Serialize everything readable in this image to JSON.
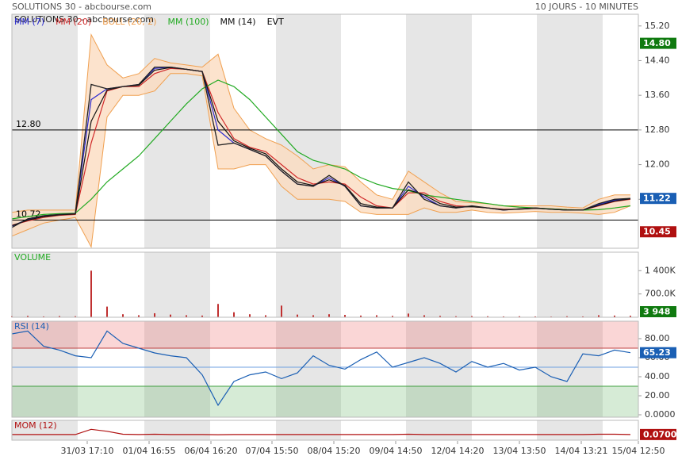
{
  "chart_data": [
    {
      "type": "line",
      "title": "SOLUTIONS 30 - abcbourse.com",
      "subtitle": "10 JOURS - 10 MINUTES",
      "color": "#222222",
      "values": [
        10.55,
        10.75,
        10.82,
        10.85,
        10.87,
        13.85,
        13.75,
        13.8,
        13.85,
        14.25,
        14.25,
        14.2,
        14.15,
        12.45,
        12.5,
        12.35,
        12.2,
        11.85,
        11.55,
        11.5,
        11.75,
        11.5,
        11.05,
        11.0,
        11.0,
        11.6,
        11.2,
        11.05,
        11.0,
        11.05,
        11.0,
        10.95,
        10.98,
        11.0,
        10.97,
        10.95,
        10.95,
        11.1,
        11.2,
        11.22
      ],
      "series": [
        {
          "name": "MM (7)",
          "color": "#2a2ad0",
          "values": [
            10.58,
            10.74,
            10.82,
            10.85,
            10.87,
            13.5,
            13.75,
            13.8,
            13.85,
            14.22,
            14.25,
            14.2,
            14.15,
            12.8,
            12.5,
            12.35,
            12.2,
            11.85,
            11.55,
            11.5,
            11.7,
            11.5,
            11.05,
            11.0,
            11.0,
            11.5,
            11.25,
            11.05,
            11.0,
            11.04,
            11.0,
            10.95,
            10.98,
            11.0,
            10.97,
            10.95,
            10.95,
            11.08,
            11.18,
            11.22
          ]
        },
        {
          "name": "MM (20)",
          "color": "#d02a2a",
          "values": [
            10.6,
            10.7,
            10.78,
            10.83,
            10.85,
            12.5,
            13.7,
            13.8,
            13.8,
            14.1,
            14.22,
            14.2,
            14.15,
            13.2,
            12.6,
            12.4,
            12.3,
            12.0,
            11.7,
            11.55,
            11.6,
            11.55,
            11.25,
            11.05,
            11.0,
            11.35,
            11.35,
            11.15,
            11.05,
            11.03,
            11.0,
            10.97,
            10.97,
            10.99,
            10.98,
            10.96,
            10.95,
            11.05,
            11.15,
            11.2
          ]
        },
        {
          "name": "BOLL (20, 2)",
          "color": "#f0a050",
          "fill": "#fbdcc0",
          "upper": [
            10.9,
            10.95,
            10.95,
            10.95,
            10.95,
            15.0,
            14.3,
            14.0,
            14.1,
            14.45,
            14.35,
            14.3,
            14.25,
            14.55,
            13.3,
            12.8,
            12.6,
            12.45,
            12.2,
            11.9,
            12.0,
            11.95,
            11.6,
            11.3,
            11.2,
            11.85,
            11.6,
            11.35,
            11.15,
            11.12,
            11.1,
            11.05,
            11.05,
            11.05,
            11.05,
            11.02,
            11.0,
            11.2,
            11.3,
            11.3
          ],
          "lower": [
            10.35,
            10.5,
            10.65,
            10.72,
            10.78,
            10.1,
            13.1,
            13.6,
            13.6,
            13.7,
            14.1,
            14.1,
            14.05,
            11.9,
            11.9,
            12.0,
            12.0,
            11.5,
            11.2,
            11.2,
            11.2,
            11.15,
            10.9,
            10.85,
            10.85,
            10.85,
            11.0,
            10.9,
            10.9,
            10.95,
            10.9,
            10.88,
            10.9,
            10.92,
            10.9,
            10.9,
            10.88,
            10.85,
            10.9,
            11.05
          ]
        },
        {
          "name": "MM (100)",
          "color": "#22aa22",
          "values": [
            10.75,
            10.8,
            10.85,
            10.87,
            10.88,
            11.2,
            11.6,
            11.9,
            12.2,
            12.6,
            13.0,
            13.4,
            13.75,
            13.95,
            13.8,
            13.5,
            13.1,
            12.7,
            12.3,
            12.1,
            12.0,
            11.9,
            11.7,
            11.55,
            11.45,
            11.4,
            11.3,
            11.25,
            11.2,
            11.15,
            11.1,
            11.05,
            11.02,
            11.0,
            10.98,
            10.96,
            10.95,
            10.96,
            11.0,
            11.05
          ]
        },
        {
          "name": "MM (14)",
          "color": "#111111",
          "values": [
            10.59,
            10.72,
            10.8,
            10.84,
            10.86,
            13.0,
            13.72,
            13.8,
            13.83,
            14.18,
            14.24,
            14.2,
            14.15,
            13.0,
            12.55,
            12.38,
            12.25,
            11.9,
            11.6,
            11.52,
            11.65,
            11.52,
            11.1,
            11.02,
            11.0,
            11.42,
            11.3,
            11.1,
            11.02,
            11.03,
            11.0,
            10.96,
            10.97,
            10.99,
            10.97,
            10.95,
            10.95,
            11.06,
            11.16,
            11.21
          ]
        }
      ],
      "events_label": "EVT",
      "hlines": [
        {
          "value": 12.8,
          "label": "12.80"
        },
        {
          "value": 10.72,
          "label": "10.72"
        }
      ],
      "badges": [
        {
          "value": 14.8,
          "label": "14.80",
          "color": "#0f7a0f"
        },
        {
          "value": 11.22,
          "label": "11.22",
          "color": "#1a5fb4"
        },
        {
          "value": 10.45,
          "label": "10.45",
          "color": "#b01010"
        }
      ],
      "xlim": [
        0,
        39.5
      ],
      "xticks": [
        {
          "value": 4.75,
          "label": "31/03 17:10"
        },
        {
          "value": 8.65,
          "label": "01/04 16:55"
        },
        {
          "value": 12.55,
          "label": "06/04 16:20"
        },
        {
          "value": 16.4,
          "label": "07/04 15:50"
        },
        {
          "value": 20.3,
          "label": "08/04 15:20"
        },
        {
          "value": 24.2,
          "label": "09/04 14:50"
        },
        {
          "value": 28.1,
          "label": "12/04 14:20"
        },
        {
          "value": 32,
          "label": "13/04 13:50"
        },
        {
          "value": 35.9,
          "label": "14/04 13:21"
        },
        {
          "value": 39.5,
          "label": "15/04 12:50"
        }
      ],
      "ylim": [
        10.07,
        15.47
      ],
      "yticks": [
        {
          "value": 15.2,
          "label": "15.20"
        },
        {
          "value": 14.4,
          "label": "14.40"
        },
        {
          "value": 13.6,
          "label": "13.60"
        },
        {
          "value": 12.8,
          "label": "12.80"
        },
        {
          "value": 12.0,
          "label": "12.00"
        },
        {
          "value": 11.2,
          "label": "11.20"
        }
      ]
    },
    {
      "type": "bar",
      "title": "VOLUME",
      "color": "#c03030",
      "values": [
        30000,
        40000,
        25000,
        35000,
        30000,
        1400000,
        320000,
        90000,
        60000,
        120000,
        80000,
        60000,
        50000,
        400000,
        150000,
        90000,
        60000,
        350000,
        80000,
        60000,
        90000,
        70000,
        50000,
        60000,
        40000,
        110000,
        60000,
        40000,
        30000,
        35000,
        30000,
        25000,
        30000,
        25000,
        20000,
        30000,
        25000,
        60000,
        50000,
        45000
      ],
      "badge": {
        "value": 3948,
        "label": "3 948",
        "color": "#0f7a0f"
      },
      "ylim": [
        0,
        1955000
      ],
      "yticks": [
        {
          "value": 1400000,
          "label": "1 400K"
        },
        {
          "value": 700000,
          "label": "700.0K"
        }
      ]
    },
    {
      "type": "line",
      "title": "RSI (14)",
      "color": "#1a5fb4",
      "values": [
        85,
        88,
        72,
        68,
        62,
        60,
        88,
        75,
        70,
        65,
        62,
        60,
        42,
        10,
        35,
        42,
        45,
        38,
        44,
        62,
        52,
        48,
        58,
        66,
        50,
        55,
        60,
        54,
        45,
        56,
        50,
        54,
        47,
        50,
        40,
        35,
        64,
        62,
        68,
        65.23
      ],
      "overbought": 70,
      "oversold": 30,
      "midline": 50,
      "badge": {
        "value": 65.23,
        "label": "65.23",
        "color": "#1a5fb4"
      },
      "ylim": [
        -2.5,
        98.3
      ],
      "yticks": [
        {
          "value": 80,
          "label": "80.00"
        },
        {
          "value": 60,
          "label": "60.00"
        },
        {
          "value": 40,
          "label": "40.00"
        },
        {
          "value": 20,
          "label": "20.00"
        },
        {
          "value": 0,
          "label": "0.0000"
        }
      ]
    },
    {
      "type": "line",
      "title": "MOM (12)",
      "color": "#b01010",
      "values": [
        0.07,
        0.07,
        0.07,
        0.07,
        0.07,
        0.6,
        0.4,
        0.1,
        0.07,
        0.1,
        0.07,
        0.07,
        0.07,
        0.05,
        0.07,
        0.07,
        0.07,
        0.07,
        0.07,
        0.07,
        0.07,
        0.07,
        0.07,
        0.07,
        0.07,
        0.1,
        0.07,
        0.07,
        0.07,
        0.07,
        0.07,
        0.07,
        0.07,
        0.07,
        0.07,
        0.07,
        0.07,
        0.1,
        0.1,
        0.07
      ],
      "badge": {
        "value": 0.07,
        "label": "0.0700",
        "color": "#b01010"
      },
      "ylim": [
        -0.5,
        1.5
      ]
    }
  ]
}
